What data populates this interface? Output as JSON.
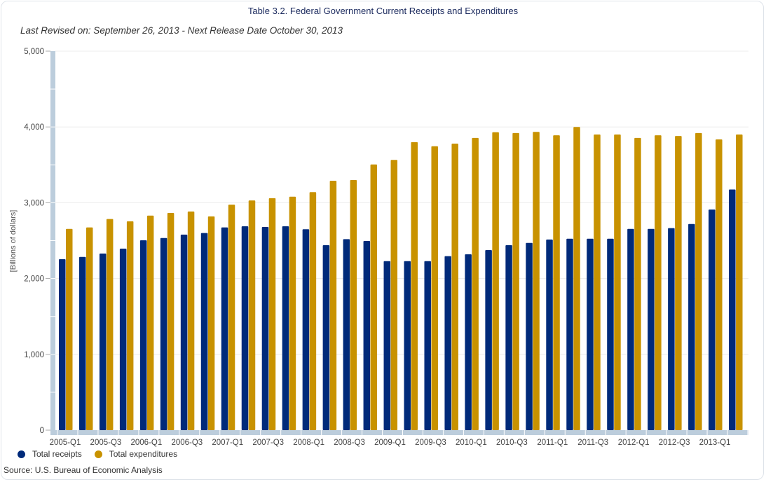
{
  "chart_data": {
    "type": "bar",
    "title": "Table 3.2. Federal Government Current Receipts and Expenditures",
    "subtitle": "Last Revised on: September 26, 2013 - Next Release Date October 30, 2013",
    "xlabel": "",
    "ylabel": "[Billions of dollars]",
    "ylim": [
      0,
      5000
    ],
    "yticks": [
      0,
      1000,
      2000,
      3000,
      4000,
      5000
    ],
    "ytick_labels": [
      "0",
      "1,000",
      "2,000",
      "3,000",
      "4,000",
      "5,000"
    ],
    "grid": true,
    "legend_position": "bottom-left",
    "categories": [
      "2005-Q1",
      "2005-Q2",
      "2005-Q3",
      "2005-Q4",
      "2006-Q1",
      "2006-Q2",
      "2006-Q3",
      "2006-Q4",
      "2007-Q1",
      "2007-Q2",
      "2007-Q3",
      "2007-Q4",
      "2008-Q1",
      "2008-Q2",
      "2008-Q3",
      "2008-Q4",
      "2009-Q1",
      "2009-Q2",
      "2009-Q3",
      "2009-Q4",
      "2010-Q1",
      "2010-Q2",
      "2010-Q3",
      "2010-Q4",
      "2011-Q1",
      "2011-Q2",
      "2011-Q3",
      "2011-Q4",
      "2012-Q1",
      "2012-Q2",
      "2012-Q3",
      "2012-Q4",
      "2013-Q1",
      "2013-Q2"
    ],
    "xtick_labels": [
      "2005-Q1",
      "2005-Q3",
      "2006-Q1",
      "2006-Q3",
      "2007-Q1",
      "2007-Q3",
      "2008-Q1",
      "2008-Q3",
      "2009-Q1",
      "2009-Q3",
      "2010-Q1",
      "2010-Q3",
      "2011-Q1",
      "2011-Q3",
      "2012-Q1",
      "2012-Q3",
      "2013-Q1"
    ],
    "series": [
      {
        "name": "Total receipts",
        "color": "#002a7a",
        "values": [
          2255,
          2285,
          2330,
          2395,
          2505,
          2535,
          2580,
          2600,
          2675,
          2690,
          2680,
          2690,
          2650,
          2440,
          2520,
          2495,
          2230,
          2230,
          2230,
          2295,
          2320,
          2375,
          2440,
          2470,
          2515,
          2525,
          2525,
          2525,
          2655,
          2655,
          2665,
          2720,
          2910,
          3175
        ]
      },
      {
        "name": "Total expenditures",
        "color": "#c89200",
        "values": [
          2655,
          2675,
          2785,
          2755,
          2830,
          2865,
          2885,
          2820,
          2975,
          3030,
          3060,
          3080,
          3140,
          3290,
          3300,
          3505,
          3565,
          3800,
          3745,
          3780,
          3855,
          3930,
          3920,
          3935,
          3890,
          4000,
          3900,
          3900,
          3855,
          3890,
          3880,
          3920,
          3835,
          3900
        ]
      }
    ]
  },
  "source": "Source: U.S. Bureau of Economic Analysis"
}
